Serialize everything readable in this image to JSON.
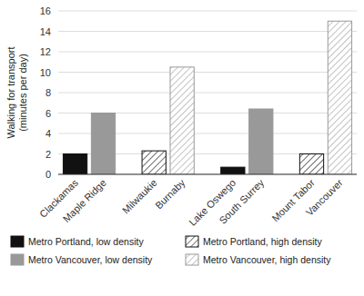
{
  "chart_data": {
    "type": "bar",
    "ylabel": "Walking for transport\n(minutes per day)",
    "categories": [
      "Clackamas",
      "Maple Ridge",
      "Milwaukie",
      "Burnaby",
      "Lake Oswego",
      "South Surrey",
      "Mount Tabor",
      "Vancouver"
    ],
    "series": [
      {
        "name": "Metro Portland, low density",
        "color": "#111111",
        "values": [
          2.0,
          null,
          null,
          null,
          0.7,
          null,
          null,
          null
        ]
      },
      {
        "name": "Metro Portland, high density",
        "color": "#111111",
        "values": [
          null,
          null,
          2.3,
          null,
          null,
          null,
          2.0,
          null
        ]
      },
      {
        "name": "Metro Vancouver, low density",
        "color": "#999999",
        "values": [
          null,
          6.0,
          null,
          null,
          null,
          6.4,
          null,
          null
        ]
      },
      {
        "name": "Metro Vancouver, high density",
        "color": "#999999",
        "values": [
          null,
          null,
          null,
          10.5,
          null,
          null,
          null,
          15.0
        ]
      }
    ],
    "ylim": [
      0,
      16
    ],
    "yticks": [
      0,
      2,
      4,
      6,
      8,
      10,
      12,
      14,
      16
    ],
    "grid": true,
    "legend": "bottom"
  }
}
